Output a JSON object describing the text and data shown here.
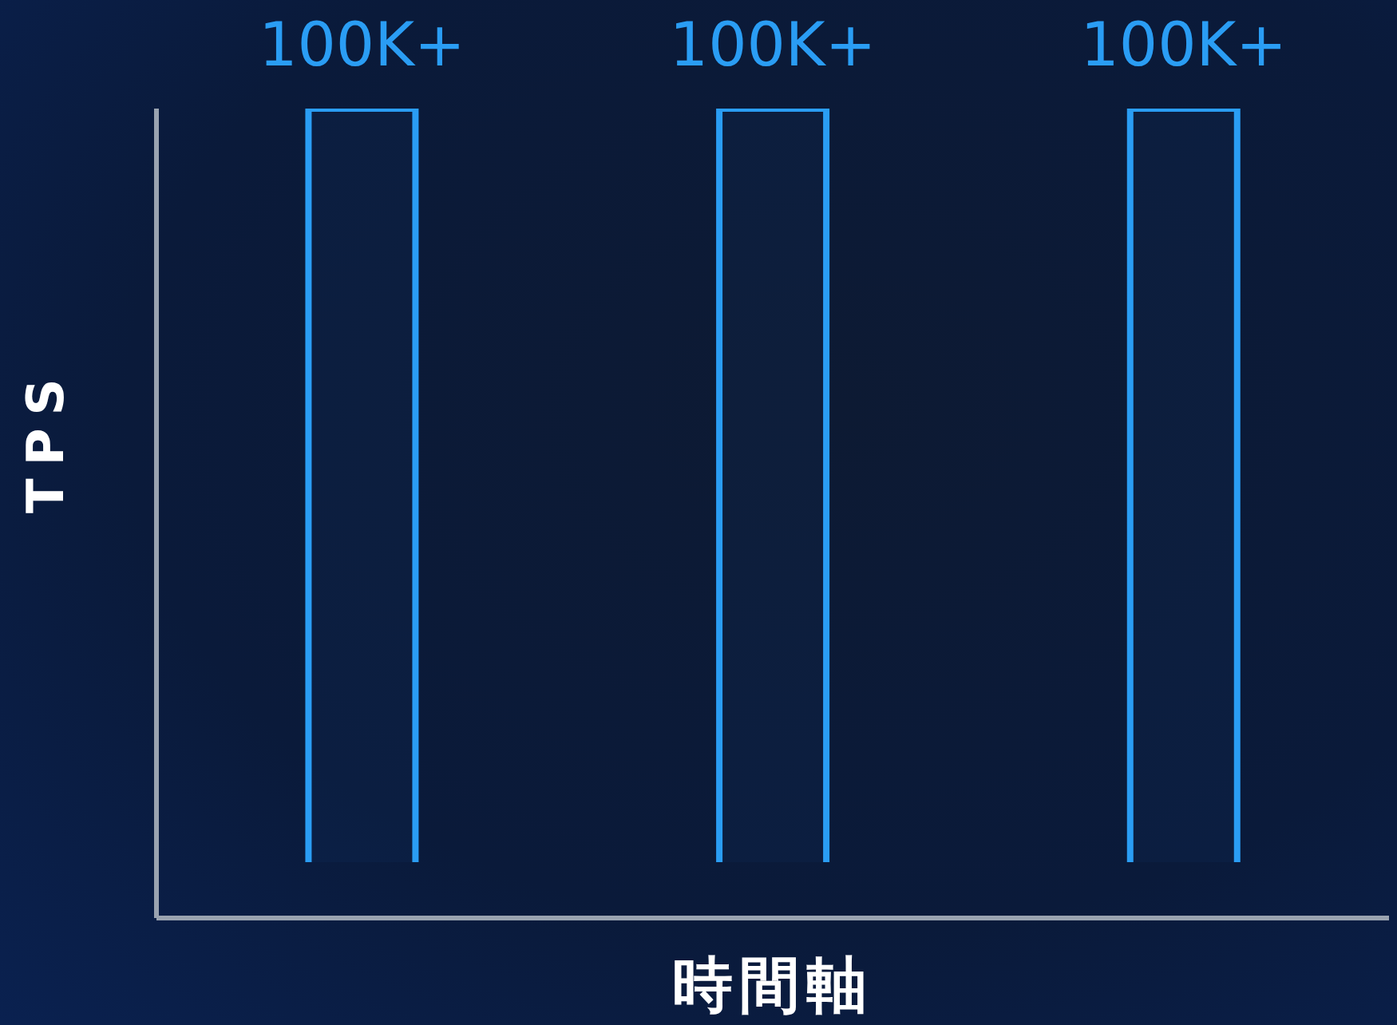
{
  "chart_data": {
    "type": "bar",
    "categories": [
      null,
      null,
      null
    ],
    "values": [
      100000,
      100000,
      100000
    ],
    "value_labels": [
      "100K+",
      "100K+",
      "100K+"
    ],
    "color": "#2a9df4",
    "ylim": [
      0,
      100000
    ],
    "tick_labels": false,
    "xlabel": "時間軸",
    "ylabel": "TPS",
    "grid": false,
    "legend": false
  }
}
